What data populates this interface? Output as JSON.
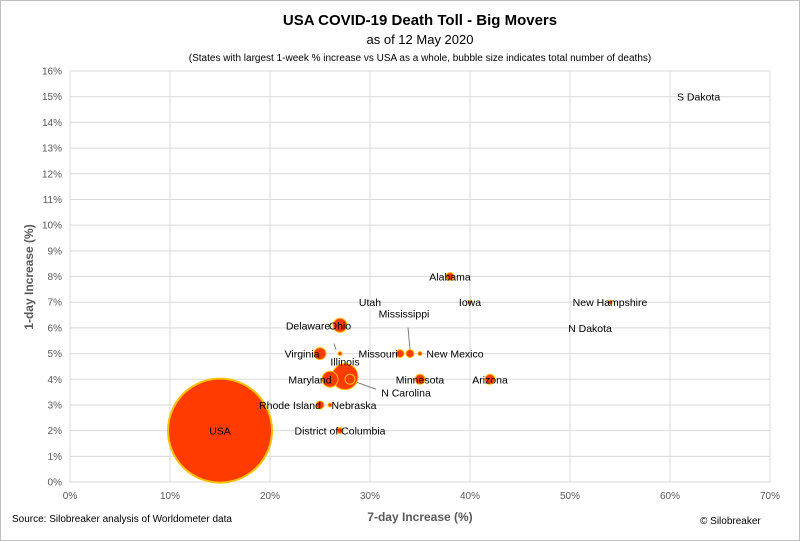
{
  "chart_data": {
    "type": "scatter",
    "title": "USA COVID-19 Death Toll - Big Movers",
    "subtitle": "as of 12 May 2020",
    "note": "(States with largest 1-week % increase vs USA as a whole, bubble size indicates total number of deaths)",
    "xlabel": "7-day Increase (%)",
    "ylabel": "1-day Increase (%)",
    "xlim": [
      0,
      70
    ],
    "ylim": [
      0,
      16
    ],
    "x_ticks": [
      "0%",
      "10%",
      "20%",
      "30%",
      "40%",
      "50%",
      "60%",
      "70%"
    ],
    "y_ticks": [
      "0%",
      "1%",
      "2%",
      "3%",
      "4%",
      "5%",
      "6%",
      "7%",
      "8%",
      "9%",
      "10%",
      "11%",
      "12%",
      "13%",
      "14%",
      "15%",
      "16%"
    ],
    "grid": true,
    "bubble_color": "#ff3b00",
    "bubble_edge_color": "#ffc000",
    "points": [
      {
        "label": "USA",
        "x": 15,
        "y": 2,
        "size": 52
      },
      {
        "label": "S Dakota",
        "x": 61.5,
        "y": 15,
        "size": 0
      },
      {
        "label": "Alabama",
        "x": 38,
        "y": 8,
        "size": 4
      },
      {
        "label": "Utah",
        "x": 30,
        "y": 7,
        "size": 0
      },
      {
        "label": "Iowa",
        "x": 40,
        "y": 7,
        "size": 2
      },
      {
        "label": "New Hampshire",
        "x": 54,
        "y": 7,
        "size": 2
      },
      {
        "label": "N Dakota",
        "x": 52,
        "y": 6,
        "size": 0
      },
      {
        "label": "Ohio",
        "x": 27,
        "y": 6.1,
        "size": 7
      },
      {
        "label": "Mississippi",
        "x": 34,
        "y": 5,
        "size": 4
      },
      {
        "label": "Delaware",
        "x": 27,
        "y": 5,
        "size": 2
      },
      {
        "label": "Virginia",
        "x": 25,
        "y": 5,
        "size": 6
      },
      {
        "label": "Missouri",
        "x": 33,
        "y": 5,
        "size": 4
      },
      {
        "label": "New Mexico",
        "x": 35,
        "y": 5,
        "size": 2
      },
      {
        "label": "Illinois",
        "x": 27.5,
        "y": 4.1,
        "size": 13
      },
      {
        "label": "Maryland",
        "x": 26,
        "y": 4,
        "size": 8
      },
      {
        "label": "N Carolina",
        "x": 28,
        "y": 4,
        "size": 5
      },
      {
        "label": "Minnesota",
        "x": 35,
        "y": 4,
        "size": 5
      },
      {
        "label": "Arizona",
        "x": 42,
        "y": 4,
        "size": 5
      },
      {
        "label": "Rhode Island",
        "x": 25,
        "y": 3,
        "size": 4
      },
      {
        "label": "Nebraska",
        "x": 26,
        "y": 3,
        "size": 2
      },
      {
        "label": "District of Columbia",
        "x": 27,
        "y": 2,
        "size": 3
      }
    ]
  },
  "footer": {
    "source": "Source: Silobreaker analysis of Worldometer data",
    "credit": "© Silobreaker"
  }
}
